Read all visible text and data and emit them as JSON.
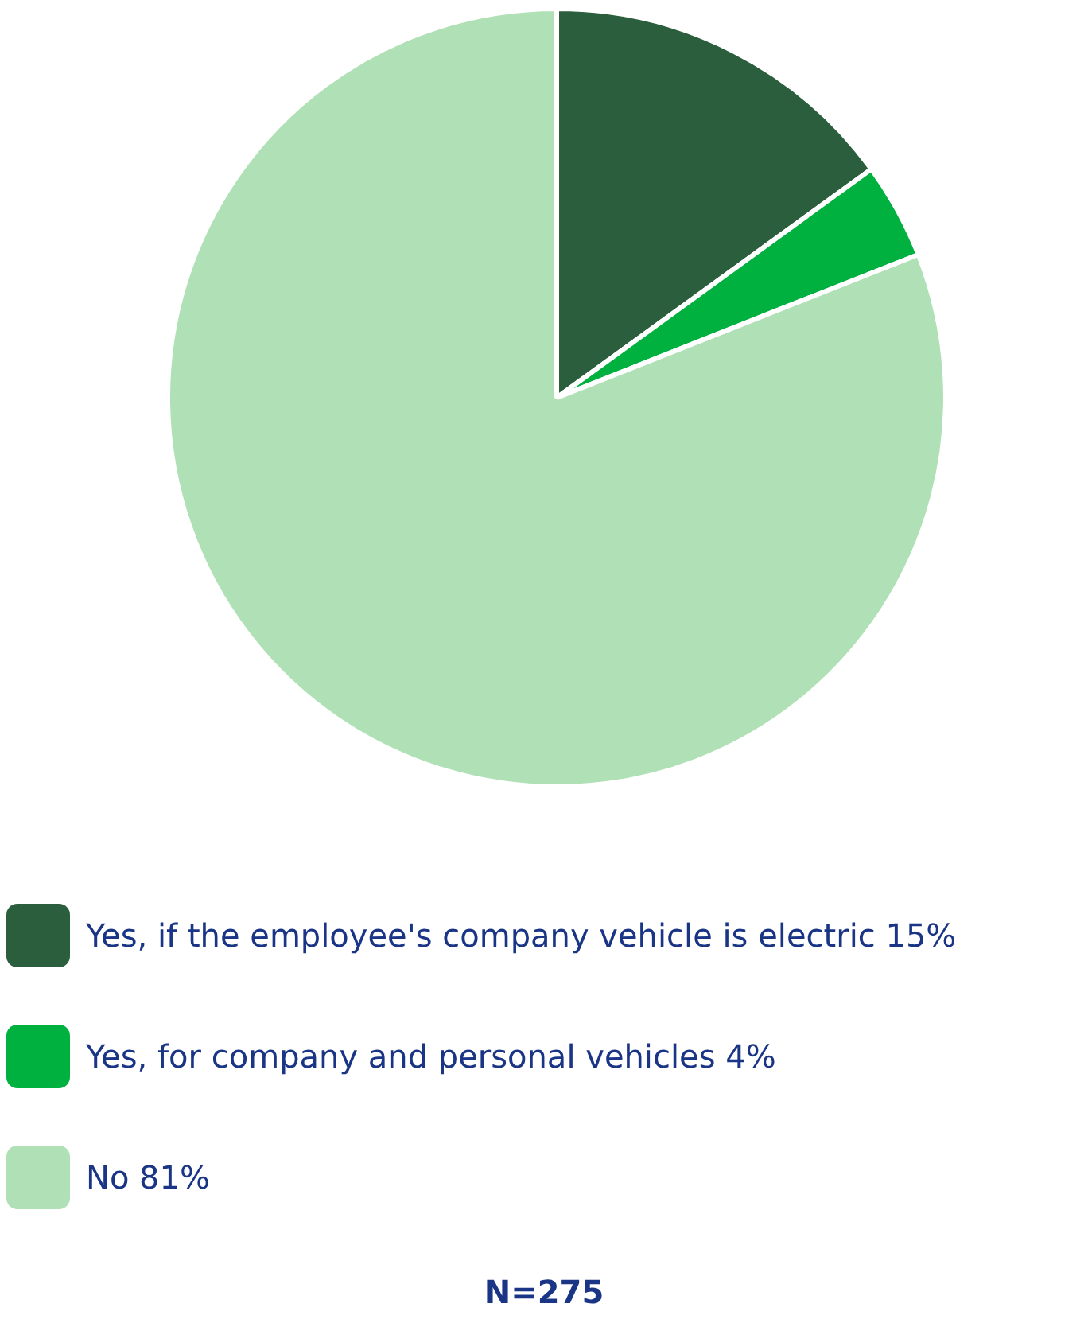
{
  "chart_data": {
    "type": "pie",
    "categories": [
      "Yes, if the employee's company vehicle is electric",
      "Yes, for company and personal vehicles",
      "No"
    ],
    "values": [
      15,
      4,
      81
    ],
    "colors": [
      "#2a5e3c",
      "#00b140",
      "#b0e0b5"
    ],
    "value_labels": [
      "15%",
      "4%",
      "81%"
    ],
    "legend": "bottom",
    "annotations": [
      "N=275"
    ]
  }
}
